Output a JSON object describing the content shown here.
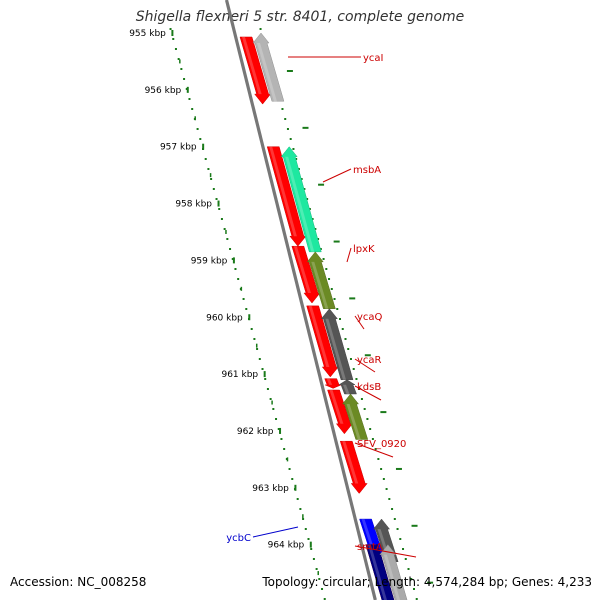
{
  "title": "Shigella flexneri 5 str. 8401, complete genome",
  "footer": {
    "accession": "Accession: NC_008258",
    "summary": "Topology: circular; Length: 4,574,284 bp; Genes: 4,233"
  },
  "colors": {
    "backbone": "#777777",
    "tick": "#1a7a1a",
    "strand_plus": "#ff0000",
    "label_plus": "#cc0000",
    "label_minus": "#0000cc"
  },
  "scale": {
    "unit": "kbp",
    "ticks": [
      {
        "label": "955 kbp"
      },
      {
        "label": "956 kbp"
      },
      {
        "label": "957 kbp"
      },
      {
        "label": "958 kbp"
      },
      {
        "label": "959 kbp"
      },
      {
        "label": "960 kbp"
      },
      {
        "label": "961 kbp"
      },
      {
        "label": "962 kbp"
      },
      {
        "label": "963 kbp"
      },
      {
        "label": "964 kbp"
      }
    ]
  },
  "features": [
    {
      "id": "f1",
      "strand": "plus",
      "start": 955.07,
      "end": 956.25,
      "color": "#ff0000"
    },
    {
      "id": "f2",
      "strand": "plus",
      "start": 957.0,
      "end": 958.75,
      "color": "#ff0000"
    },
    {
      "id": "f3",
      "strand": "plus",
      "start": 958.75,
      "end": 959.75,
      "color": "#ff0000"
    },
    {
      "id": "f4",
      "strand": "plus",
      "start": 959.8,
      "end": 961.05,
      "color": "#ff0000"
    },
    {
      "id": "f5",
      "strand": "plus",
      "start": 961.08,
      "end": 961.25,
      "color": "#ff0000"
    },
    {
      "id": "f6",
      "strand": "plus",
      "start": 961.28,
      "end": 962.05,
      "color": "#ff0000"
    },
    {
      "id": "f7",
      "strand": "plus",
      "start": 962.18,
      "end": 963.1,
      "color": "#ff0000"
    },
    {
      "id": "f8",
      "strand": "plus",
      "start": 963.55,
      "end": 964.3,
      "color": "#0000ff"
    },
    {
      "id": "f9",
      "strand": "plus",
      "start": 964.0,
      "end": 965.2,
      "color": "#ff0000"
    },
    {
      "id": "f10",
      "strand": "plus",
      "start": 964.0,
      "end": 965.2,
      "color": "#000080"
    },
    {
      "id": "s1",
      "strand": "minus",
      "start": 955.0,
      "end": 956.2,
      "color": "#b4b4b4"
    },
    {
      "id": "s2",
      "strand": "minus",
      "start": 957.0,
      "end": 958.85,
      "color": "#1ee8a0"
    },
    {
      "id": "s3",
      "strand": "minus",
      "start": 958.85,
      "end": 959.85,
      "color": "#6b8a24"
    },
    {
      "id": "s4",
      "strand": "minus",
      "start": 959.85,
      "end": 961.1,
      "color": "#555555"
    },
    {
      "id": "s5",
      "strand": "minus",
      "start": 961.1,
      "end": 961.35,
      "color": "#555555"
    },
    {
      "id": "s6",
      "strand": "minus",
      "start": 961.35,
      "end": 962.15,
      "color": "#6b8a24"
    },
    {
      "id": "s7",
      "strand": "minus",
      "start": 963.55,
      "end": 964.3,
      "color": "#555555"
    },
    {
      "id": "s8",
      "strand": "minus",
      "start": 964.0,
      "end": 965.2,
      "color": "#aaaaaa"
    }
  ],
  "gene_labels": [
    {
      "name": "ycaI",
      "side": "right"
    },
    {
      "name": "msbA",
      "side": "right"
    },
    {
      "name": "lpxK",
      "side": "right"
    },
    {
      "name": "ycaQ",
      "side": "right"
    },
    {
      "name": "ycaR",
      "side": "right"
    },
    {
      "name": "kdsB",
      "side": "right"
    },
    {
      "name": "SFV_0920",
      "side": "right"
    },
    {
      "name": "ycbC",
      "side": "left"
    },
    {
      "name": "smtA",
      "side": "right"
    }
  ]
}
